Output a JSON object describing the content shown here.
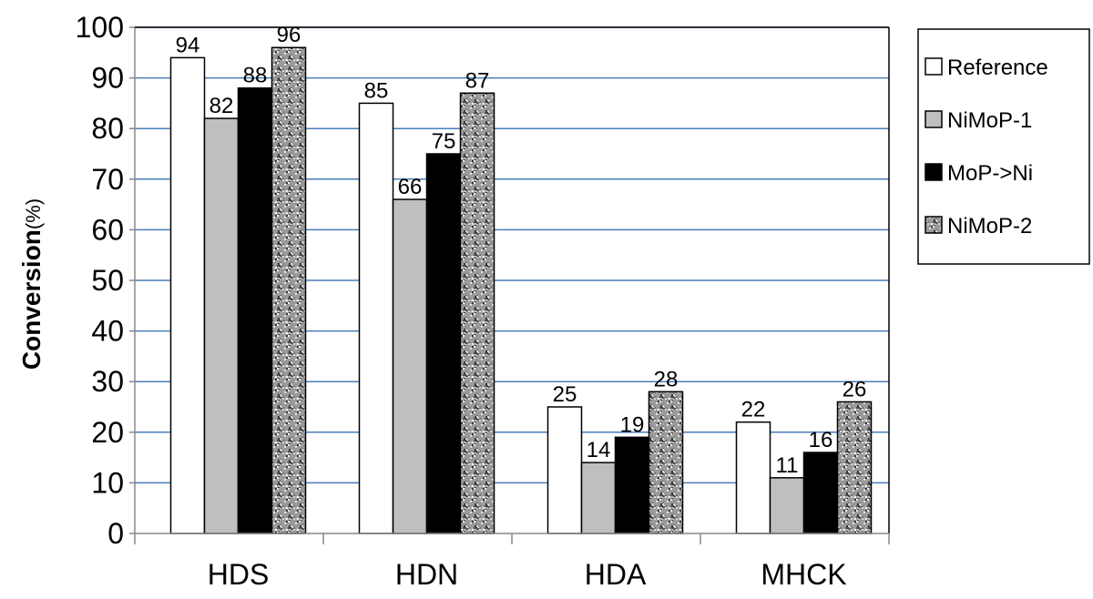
{
  "chart_data": {
    "type": "bar",
    "title": "",
    "xlabel": "",
    "ylabel": "Conversion",
    "ylabel_unit": "(%)",
    "ylim": [
      0,
      100
    ],
    "yticks": [
      "0",
      "10",
      "20",
      "30",
      "40",
      "50",
      "60",
      "70",
      "80",
      "90",
      "100"
    ],
    "grid": true,
    "legend_position": "right",
    "categories": [
      "HDS",
      "HDN",
      "HDA",
      "MHCK"
    ],
    "series": [
      {
        "name": "Reference",
        "values": [
          94,
          85,
          25,
          22
        ],
        "fill": "#ffffff",
        "pattern": "none"
      },
      {
        "name": "NiMoP-1",
        "values": [
          82,
          66,
          14,
          11
        ],
        "fill": "#bfbfbf",
        "pattern": "none"
      },
      {
        "name": "MoP->Ni",
        "values": [
          88,
          75,
          19,
          16
        ],
        "fill": "#000000",
        "pattern": "none"
      },
      {
        "name": "NiMoP-2",
        "values": [
          96,
          87,
          28,
          26
        ],
        "fill": "#8c8c8c",
        "pattern": "speckle"
      }
    ],
    "gridline_color": "#4a7ebb"
  }
}
